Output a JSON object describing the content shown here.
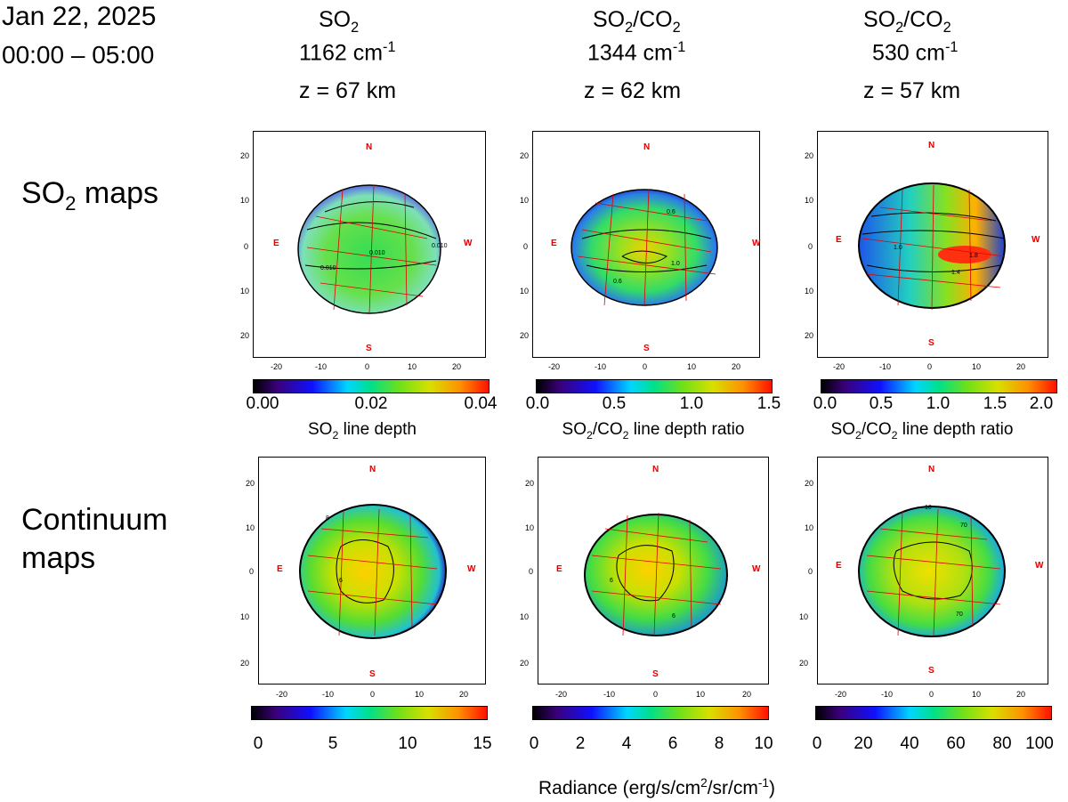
{
  "header": {
    "date": "Jan 22, 2025",
    "time": "00:00 – 05:00"
  },
  "columns": [
    {
      "species_base": "SO",
      "species_sub": "2",
      "species_rest": "",
      "species_sub2": "",
      "wavenumber": "1162 cm",
      "wn_sup": "-1",
      "altitude": "z = 67 km"
    },
    {
      "species_base": "SO",
      "species_sub": "2",
      "species_rest": "/CO",
      "species_sub2": "2",
      "wavenumber": "1344 cm",
      "wn_sup": "-1",
      "altitude": "z = 62 km"
    },
    {
      "species_base": "SO",
      "species_sub": "2",
      "species_rest": "/CO",
      "species_sub2": "2",
      "wavenumber": "530 cm",
      "wn_sup": "-1",
      "altitude": "z = 57 km"
    }
  ],
  "rows": {
    "so2": {
      "label_base": "SO",
      "label_sub": "2",
      "label_rest": " maps"
    },
    "continuum": {
      "line1": "Continuum",
      "line2": "maps"
    }
  },
  "compass": {
    "n": "N",
    "s": "S",
    "e": "E",
    "w": "W"
  },
  "axis_ticks": {
    "x": [
      "-20",
      "-10",
      "0",
      "10",
      "20"
    ],
    "y": [
      "20",
      "10",
      "0",
      "10",
      "20"
    ]
  },
  "so2_colorbars": [
    {
      "ticks": [
        "0.00",
        "0.02",
        "0.04"
      ],
      "label_base": "SO",
      "label_sub": "2",
      "label_rest": " line depth",
      "label_sub2": "",
      "label_tail": ""
    },
    {
      "ticks": [
        "0.0",
        "0.5",
        "1.0",
        "1.5"
      ],
      "label_base": "SO",
      "label_sub": "2",
      "label_rest": "/CO",
      "label_sub2": "2",
      "label_tail": " line depth ratio"
    },
    {
      "ticks": [
        "0.0",
        "0.5",
        "1.0",
        "1.5",
        "2.0"
      ],
      "label_base": "SO",
      "label_sub": "2",
      "label_rest": "/CO",
      "label_sub2": "2",
      "label_tail": " line depth ratio"
    }
  ],
  "cont_colorbars": [
    {
      "ticks": [
        "0",
        "5",
        "10",
        "15"
      ]
    },
    {
      "ticks": [
        "0",
        "2",
        "4",
        "6",
        "8",
        "10"
      ]
    },
    {
      "ticks": [
        "0",
        "20",
        "40",
        "60",
        "80",
        "100"
      ]
    }
  ],
  "radiance_label": {
    "base": "Radiance (erg/s/cm",
    "sup": "2",
    "rest": "/sr/cm",
    "sup2": "-1",
    "close": ")"
  },
  "contour_labels": {
    "p1": [
      "0.010",
      "0.010",
      "0.010"
    ],
    "p2": [
      "0.6",
      "1.0",
      "0.6"
    ],
    "p3": [
      "1.0",
      "1.8",
      "1.4"
    ],
    "p4": [
      "6",
      "8"
    ],
    "p5": [
      "6",
      "6"
    ],
    "p6": [
      "10",
      "70",
      "70"
    ]
  }
}
